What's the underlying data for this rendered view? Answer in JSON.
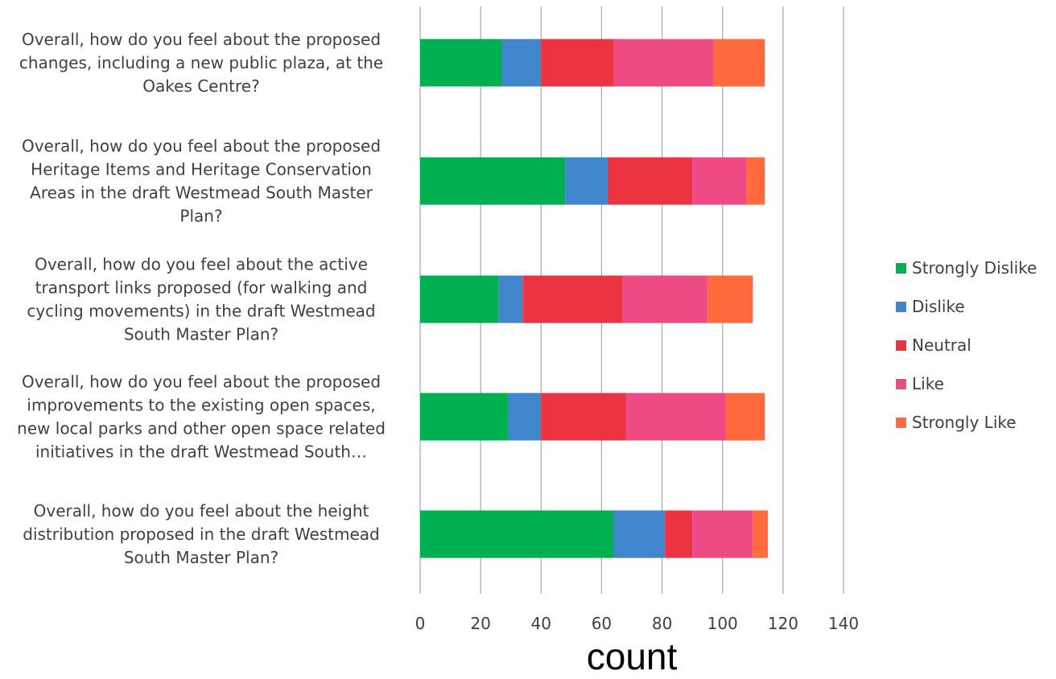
{
  "chart_data": {
    "type": "bar",
    "orientation": "horizontal",
    "stacked": true,
    "categories": [
      [
        "Overall, how do you feel about the proposed",
        "changes, including a new public plaza, at the",
        "Oakes Centre?"
      ],
      [
        "Overall, how do you feel about the proposed",
        "Heritage Items and Heritage Conservation",
        "Areas in the draft Westmead South Master",
        "Plan?"
      ],
      [
        "Overall, how do you feel about the active",
        "transport links proposed (for walking and",
        "cycling movements) in the draft Westmead",
        "South Master Plan?"
      ],
      [
        "Overall, how do you feel about the proposed",
        "improvements to the existing open spaces,",
        "new local parks and other open space related",
        "initiatives in the draft Westmead South…"
      ],
      [
        "Overall, how do you feel about the height",
        "distribution proposed in the draft Westmead",
        "South Master Plan?"
      ]
    ],
    "series": [
      {
        "name": "Strongly Dislike",
        "color": "#00b050",
        "values": [
          27,
          48,
          26,
          29,
          64
        ]
      },
      {
        "name": "Dislike",
        "color": "#3f86cd",
        "values": [
          13,
          14,
          8,
          11,
          17
        ]
      },
      {
        "name": "Neutral",
        "color": "#ec3342",
        "values": [
          24,
          28,
          33,
          28,
          9
        ]
      },
      {
        "name": "Like",
        "color": "#ee4b84",
        "values": [
          33,
          18,
          28,
          33,
          20
        ]
      },
      {
        "name": "Strongly Like",
        "color": "#ff6b3d",
        "values": [
          17,
          6,
          15,
          13,
          5
        ]
      }
    ],
    "xlim": [
      0,
      140
    ],
    "xticks": [
      "0",
      "20",
      "40",
      "60",
      "80",
      "100",
      "120",
      "140"
    ],
    "xlabel": "count",
    "ylabel": "",
    "title": "",
    "grid": "vertical",
    "legend": "right"
  }
}
